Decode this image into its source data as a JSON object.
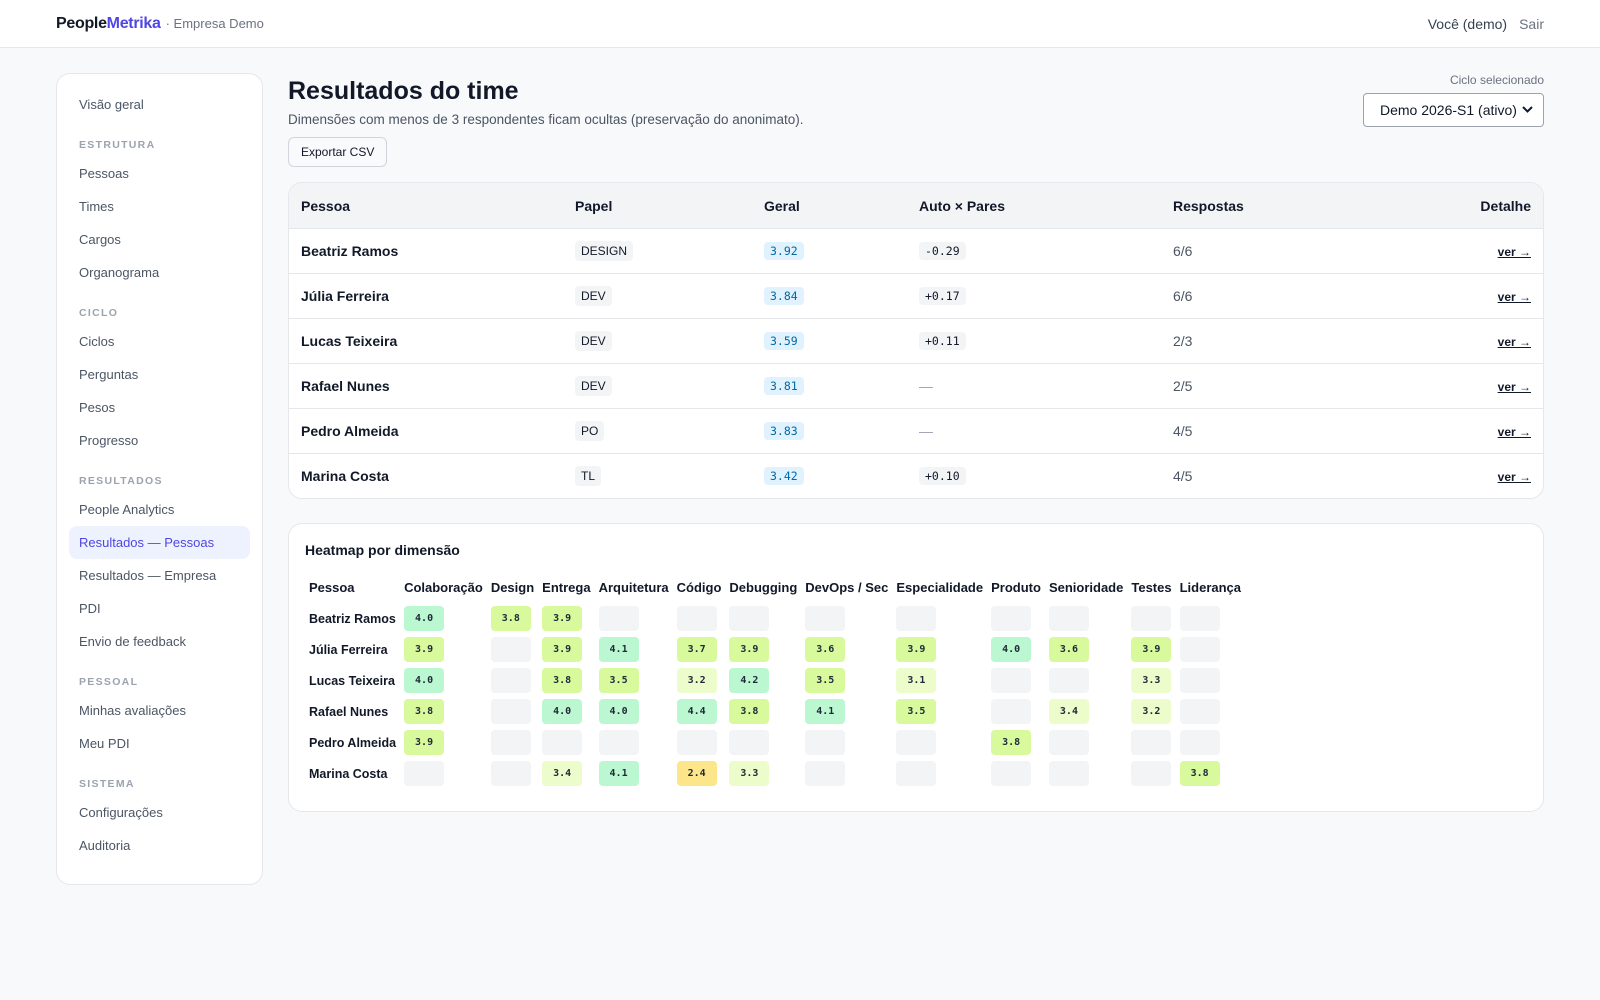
{
  "header": {
    "brand_people": "People",
    "brand_metrika": "Metrika",
    "org": "· Empresa Demo",
    "user": "Você (demo)",
    "logout": "Sair"
  },
  "sidebar": {
    "overview": "Visão geral",
    "sections": [
      {
        "title": "ESTRUTURA",
        "items": [
          "Pessoas",
          "Times",
          "Cargos",
          "Organograma"
        ]
      },
      {
        "title": "CICLO",
        "items": [
          "Ciclos",
          "Perguntas",
          "Pesos",
          "Progresso"
        ]
      },
      {
        "title": "RESULTADOS",
        "items": [
          "People Analytics",
          "Resultados — Pessoas",
          "Resultados — Empresa",
          "PDI",
          "Envio de feedback"
        ]
      },
      {
        "title": "PESSOAL",
        "items": [
          "Minhas avaliações",
          "Meu PDI"
        ]
      },
      {
        "title": "SISTEMA",
        "items": [
          "Configurações",
          "Auditoria"
        ]
      }
    ],
    "active_item": "Resultados — Pessoas"
  },
  "page": {
    "title": "Resultados do time",
    "subtitle": "Dimensões com menos de 3 respondentes ficam ocultas (preservação do anonimato).",
    "export_label": "Exportar CSV",
    "cycle_label": "Ciclo selecionado",
    "cycle_value": "Demo 2026-S1 (ativo)"
  },
  "results_table": {
    "columns": [
      "Pessoa",
      "Papel",
      "Geral",
      "Auto × Pares",
      "Respostas",
      "Detalhe"
    ],
    "rows": [
      {
        "name": "Beatriz Ramos",
        "role": "DESIGN",
        "overall": "3.92",
        "self_vs_peers": "-0.29",
        "responses": "6/6",
        "detail": "ver →"
      },
      {
        "name": "Júlia Ferreira",
        "role": "DEV",
        "overall": "3.84",
        "self_vs_peers": "+0.17",
        "responses": "6/6",
        "detail": "ver →"
      },
      {
        "name": "Lucas Teixeira",
        "role": "DEV",
        "overall": "3.59",
        "self_vs_peers": "+0.11",
        "responses": "2/3",
        "detail": "ver →"
      },
      {
        "name": "Rafael Nunes",
        "role": "DEV",
        "overall": "3.81",
        "self_vs_peers": "—",
        "responses": "2/5",
        "detail": "ver →"
      },
      {
        "name": "Pedro Almeida",
        "role": "PO",
        "overall": "3.83",
        "self_vs_peers": "—",
        "responses": "4/5",
        "detail": "ver →"
      },
      {
        "name": "Marina Costa",
        "role": "TL",
        "overall": "3.42",
        "self_vs_peers": "+0.10",
        "responses": "4/5",
        "detail": "ver →"
      }
    ]
  },
  "heatmap": {
    "title": "Heatmap por dimensão",
    "person_header": "Pessoa",
    "dimensions": [
      "Colaboração",
      "Design",
      "Entrega",
      "Arquitetura",
      "Código",
      "Debugging",
      "DevOps / Sec",
      "Especialidade",
      "Produto",
      "Senioridade",
      "Testes",
      "Liderança"
    ],
    "rows": [
      {
        "name": "Beatriz Ramos",
        "values": [
          "4.0",
          "3.8",
          "3.9",
          "",
          "",
          "",
          "",
          "",
          "",
          "",
          "",
          ""
        ]
      },
      {
        "name": "Júlia Ferreira",
        "values": [
          "3.9",
          "",
          "3.9",
          "4.1",
          "3.7",
          "3.9",
          "3.6",
          "3.9",
          "4.0",
          "3.6",
          "3.9",
          ""
        ]
      },
      {
        "name": "Lucas Teixeira",
        "values": [
          "4.0",
          "",
          "3.8",
          "3.5",
          "3.2",
          "4.2",
          "3.5",
          "3.1",
          "",
          "",
          "3.3",
          ""
        ]
      },
      {
        "name": "Rafael Nunes",
        "values": [
          "3.8",
          "",
          "4.0",
          "4.0",
          "4.4",
          "3.8",
          "4.1",
          "3.5",
          "",
          "3.4",
          "3.2",
          ""
        ]
      },
      {
        "name": "Pedro Almeida",
        "values": [
          "3.9",
          "",
          "",
          "",
          "",
          "",
          "",
          "",
          "3.8",
          "",
          "",
          ""
        ]
      },
      {
        "name": "Marina Costa",
        "values": [
          "",
          "",
          "3.4",
          "4.1",
          "2.4",
          "3.3",
          "",
          "",
          "",
          "",
          "",
          "3.8"
        ]
      }
    ]
  },
  "colors": {
    "accent": "#4f46e5",
    "active_nav_bg": "#eef2ff",
    "score_bg": "#e0f2fe",
    "score_text": "#0369a1"
  },
  "icons": {
    "select_arrow": "chevron-down-icon"
  }
}
